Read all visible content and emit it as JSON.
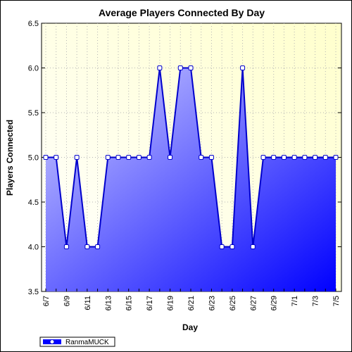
{
  "chart_data": {
    "type": "area",
    "title": "Average Players Connected By Day",
    "xlabel": "Day",
    "ylabel": "Players Connected",
    "ylim": [
      3.5,
      6.5
    ],
    "y_ticks": [
      "3.5",
      "4.0",
      "4.5",
      "5.0",
      "5.5",
      "6.0",
      "6.5"
    ],
    "x_tick_labels": [
      "6/7",
      "6/9",
      "6/11",
      "6/13",
      "6/15",
      "6/17",
      "6/19",
      "6/21",
      "6/23",
      "6/25",
      "6/27",
      "6/29",
      "7/1",
      "7/3",
      "7/5"
    ],
    "categories": [
      "6/7",
      "6/8",
      "6/9",
      "6/10",
      "6/11",
      "6/12",
      "6/13",
      "6/14",
      "6/15",
      "6/16",
      "6/17",
      "6/18",
      "6/19",
      "6/20",
      "6/21",
      "6/22",
      "6/23",
      "6/24",
      "6/25",
      "6/26",
      "6/27",
      "6/28",
      "6/29",
      "6/30",
      "7/1",
      "7/2",
      "7/3",
      "7/4",
      "7/5"
    ],
    "grid": true,
    "legend_position": "bottom-left",
    "series": [
      {
        "name": "RanmaMUCK",
        "values": [
          5,
          5,
          4,
          5,
          4,
          4,
          5,
          5,
          5,
          5,
          5,
          6,
          5,
          6,
          6,
          5,
          5,
          4,
          4,
          6,
          4,
          5,
          5,
          5,
          5,
          5,
          5,
          5,
          5
        ],
        "line_color": "#0000cc",
        "fill_color_light": "#d2d2ff",
        "fill_color_dark": "#0000ff"
      }
    ],
    "plot_background": [
      "#ffffff",
      "#ffffcc"
    ]
  }
}
